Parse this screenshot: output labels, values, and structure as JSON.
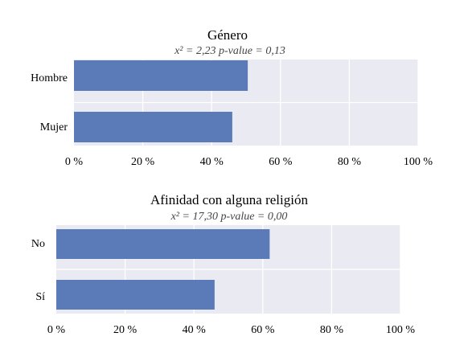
{
  "chart_data": [
    {
      "type": "bar",
      "orientation": "horizontal",
      "title": "Género",
      "subtitle": "x² = 2,23 p-value = 0,13",
      "categories": [
        "Hombre",
        "Mujer"
      ],
      "values": [
        50.5,
        46
      ],
      "xlim": [
        0,
        100
      ],
      "xticks": [
        "0 %",
        "20 %",
        "40 %",
        "60 %",
        "80 %",
        "100 %"
      ],
      "grid": true,
      "bar_color": "#5b7bb8",
      "background_color": "#eaeaf2"
    },
    {
      "type": "bar",
      "orientation": "horizontal",
      "title": "Afinidad con alguna religión",
      "subtitle": "x² = 17,30 p-value = 0,00",
      "categories": [
        "No",
        "Sí"
      ],
      "values": [
        62,
        46
      ],
      "xlim": [
        0,
        100
      ],
      "xticks": [
        "0 %",
        "20 %",
        "40 %",
        "60 %",
        "80 %",
        "100 %"
      ],
      "grid": true,
      "bar_color": "#5b7bb8",
      "background_color": "#eaeaf2"
    }
  ]
}
